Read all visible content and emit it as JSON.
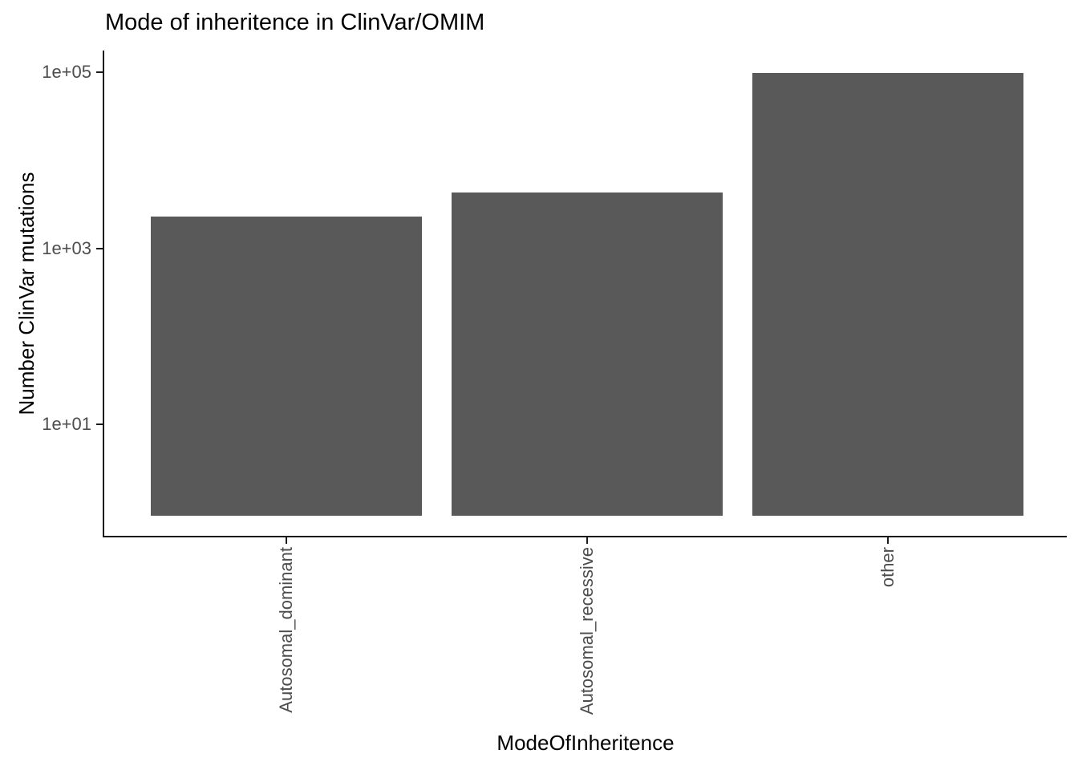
{
  "chart_data": {
    "type": "bar",
    "title": "Mode of inheritence in ClinVar/OMIM",
    "xlabel": "ModeOfInheritence",
    "ylabel": "Number ClinVar mutations",
    "categories": [
      "Autosomal_dominant",
      "Autosomal_recessive",
      "other"
    ],
    "values": [
      2300,
      4300,
      98000
    ],
    "bar_baseline": 1,
    "y_scale": "log10",
    "yticks": [
      {
        "value": 10,
        "label": "1e+01"
      },
      {
        "value": 1000,
        "label": "1e+03"
      },
      {
        "value": 100000,
        "label": "1e+05"
      }
    ],
    "grid": "off",
    "legend": "none",
    "colors": {
      "bar_fill": "#595959",
      "axis_line": "#1a1a1a",
      "tick_label": "#4d4d4d",
      "title_text": "#000000",
      "background": "#ffffff"
    }
  }
}
